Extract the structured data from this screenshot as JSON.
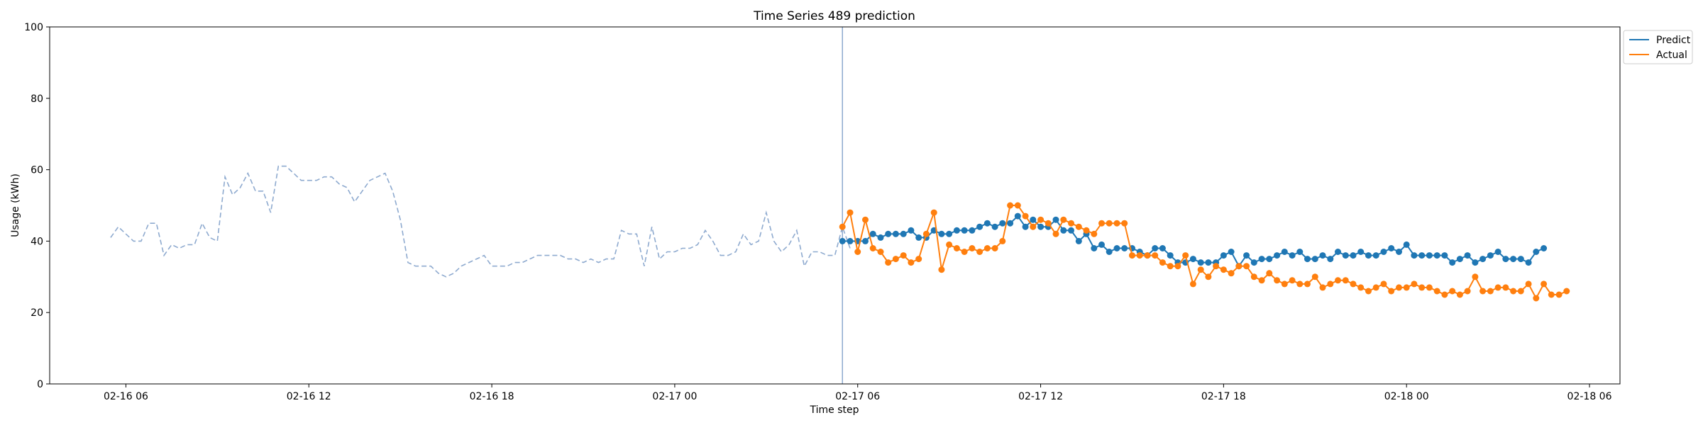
{
  "chart_data": {
    "type": "line",
    "title": "Time Series 489 prediction",
    "xlabel": "Time step",
    "ylabel": "Usage (kWh)",
    "ylim": [
      0,
      100
    ],
    "yticks": [
      0,
      20,
      40,
      60,
      80,
      100
    ],
    "x_range": [
      "2016-02-16 03:30",
      "2016-02-18 07:00"
    ],
    "x_ticks": [
      {
        "t": "2016-02-16 06:00",
        "label": "02-16 06"
      },
      {
        "t": "2016-02-16 12:00",
        "label": "02-16 12"
      },
      {
        "t": "2016-02-16 18:00",
        "label": "02-16 18"
      },
      {
        "t": "2016-02-17 00:00",
        "label": "02-17 00"
      },
      {
        "t": "2016-02-17 06:00",
        "label": "02-17 06"
      },
      {
        "t": "2016-02-17 12:00",
        "label": "02-17 12"
      },
      {
        "t": "2016-02-17 18:00",
        "label": "02-17 18"
      },
      {
        "t": "2016-02-18 00:00",
        "label": "02-18 00"
      },
      {
        "t": "2016-02-18 06:00",
        "label": "02-18 06"
      }
    ],
    "grid": false,
    "legend_position": "upper right, outside plot",
    "forecast_start": "2016-02-17 05:30",
    "step_minutes": 15,
    "history": {
      "start": "2016-02-16 05:30",
      "color": "#8eaacf",
      "style": "dashed",
      "values": [
        41,
        44,
        42,
        40,
        40,
        45,
        45,
        36,
        39,
        38,
        39,
        39,
        45,
        41,
        40,
        58,
        53,
        55,
        59,
        54,
        54,
        48,
        61,
        61,
        59,
        57,
        57,
        57,
        58,
        58,
        56,
        55,
        51,
        54,
        57,
        58,
        59,
        54,
        46,
        34,
        33,
        33,
        33,
        31,
        30,
        31,
        33,
        34,
        35,
        36,
        33,
        33,
        33,
        34,
        34,
        35,
        36,
        36,
        36,
        36,
        35,
        35,
        34,
        35,
        34,
        35,
        35,
        43,
        42,
        42,
        33,
        44,
        35,
        37,
        37,
        38,
        38,
        39,
        43,
        40,
        36,
        36,
        37,
        42,
        39,
        40,
        48,
        40,
        37,
        39,
        43,
        33,
        37,
        37,
        36,
        36,
        44,
        38
      ]
    },
    "series": [
      {
        "name": "Predict",
        "color": "#1f77b4",
        "start": "2016-02-17 05:30",
        "values": [
          40,
          40,
          40,
          40,
          42,
          41,
          42,
          42,
          42,
          43,
          41,
          41,
          43,
          42,
          42,
          43,
          43,
          43,
          44,
          45,
          44,
          45,
          45,
          47,
          44,
          46,
          44,
          44,
          46,
          43,
          43,
          40,
          42,
          38,
          39,
          37,
          38,
          38,
          38,
          37,
          36,
          38,
          38,
          36,
          34,
          34,
          35,
          34,
          34,
          34,
          36,
          37,
          33,
          36,
          34,
          35,
          35,
          36,
          37,
          36,
          37,
          35,
          35,
          36,
          35,
          37,
          36,
          36,
          37,
          36,
          36,
          37,
          38,
          37,
          39,
          36,
          36,
          36,
          36,
          36,
          34,
          35,
          36,
          34,
          35,
          36,
          37,
          35,
          35,
          35,
          34,
          37,
          38
        ]
      },
      {
        "name": "Actual",
        "color": "#ff7f0e",
        "start": "2016-02-17 05:30",
        "values": [
          44,
          48,
          37,
          46,
          38,
          37,
          34,
          35,
          36,
          34,
          35,
          42,
          48,
          32,
          39,
          38,
          37,
          38,
          37,
          38,
          38,
          40,
          50,
          50,
          47,
          44,
          46,
          45,
          42,
          46,
          45,
          44,
          43,
          42,
          45,
          45,
          45,
          45,
          36,
          36,
          36,
          36,
          34,
          33,
          33,
          36,
          28,
          32,
          30,
          33,
          32,
          31,
          33,
          33,
          30,
          29,
          31,
          29,
          28,
          29,
          28,
          28,
          30,
          27,
          28,
          29,
          29,
          28,
          27,
          26,
          27,
          28,
          26,
          27,
          27,
          28,
          27,
          27,
          26,
          25,
          26,
          25,
          26,
          30,
          26,
          26,
          27,
          27,
          26,
          26,
          28,
          24,
          28,
          25,
          25,
          26
        ]
      }
    ]
  }
}
